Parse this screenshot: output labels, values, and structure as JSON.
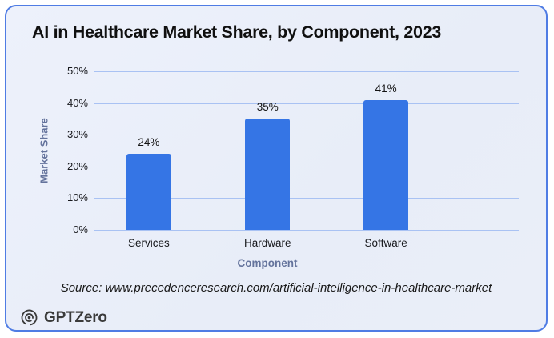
{
  "chart_data": {
    "type": "bar",
    "title": "AI in Healthcare Market Share, by Component, 2023",
    "categories": [
      "Services",
      "Hardware",
      "Software"
    ],
    "values": [
      24,
      35,
      41
    ],
    "value_labels": [
      "24%",
      "35%",
      "41%"
    ],
    "xlabel": "Component",
    "ylabel": "Market Share",
    "ylim": [
      0,
      50
    ],
    "yticks": [
      0,
      10,
      20,
      30,
      40,
      50
    ],
    "ytick_labels": [
      "0%",
      "10%",
      "20%",
      "30%",
      "40%",
      "50%"
    ],
    "grid": true,
    "legend": false,
    "bar_color": "#3575e5"
  },
  "source_text": "Source: www.precedenceresearch.com/artificial-intelligence-in-healthcare-market",
  "branding": {
    "logo_text": "GPTZero"
  },
  "colors": {
    "card_background": "#e9eef9",
    "card_border": "#4f7ce4",
    "bar": "#3575e5",
    "gridline": "#a9c2f3",
    "axis_title": "#64739c",
    "text_dark": "#141414"
  }
}
